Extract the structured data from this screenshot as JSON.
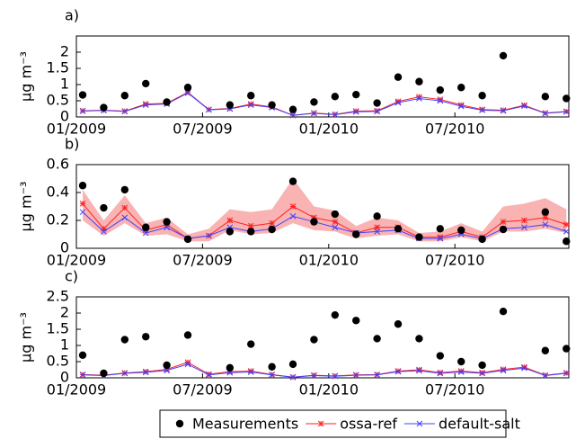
{
  "chart_data": [
    {
      "type": "line",
      "title": "a)",
      "ylabel": "µg m⁻³",
      "x": [
        "01/2009",
        "02/2009",
        "03/2009",
        "04/2009",
        "05/2009",
        "06/2009",
        "07/2009",
        "08/2009",
        "09/2009",
        "10/2009",
        "11/2009",
        "12/2009",
        "01/2010",
        "02/2010",
        "03/2010",
        "04/2010",
        "05/2010",
        "06/2010",
        "07/2010",
        "08/2010",
        "09/2010",
        "10/2010",
        "11/2010",
        "12/2010"
      ],
      "xticks": [
        "01/2009",
        "07/2009",
        "01/2010",
        "07/2010"
      ],
      "ylim": [
        0,
        2.5
      ],
      "yticks": [
        0,
        0.5,
        1,
        1.5,
        2
      ],
      "series": [
        {
          "color": "#000000",
          "marker": "o",
          "line": false,
          "values": [
            0.68,
            0.29,
            0.66,
            1.03,
            0.46,
            0.91,
            null,
            0.37,
            0.66,
            0.37,
            0.23,
            0.46,
            0.63,
            0.69,
            0.43,
            1.23,
            1.09,
            0.83,
            0.91,
            0.66,
            1.89,
            null,
            0.63,
            0.57
          ]
        },
        {
          "color": "#ff2020",
          "marker": "*",
          "line": true,
          "values": [
            0.19,
            0.21,
            0.18,
            0.4,
            0.42,
            0.76,
            0.23,
            0.26,
            0.4,
            0.31,
            0.05,
            0.12,
            0.08,
            0.18,
            0.19,
            0.48,
            0.62,
            0.54,
            0.37,
            0.23,
            0.21,
            0.36,
            0.12,
            0.17
          ]
        },
        {
          "color": "#4040ff",
          "marker": "x",
          "line": true,
          "values": [
            0.18,
            0.2,
            0.17,
            0.37,
            0.4,
            0.74,
            0.22,
            0.25,
            0.37,
            0.29,
            0.05,
            0.11,
            0.07,
            0.16,
            0.17,
            0.44,
            0.57,
            0.5,
            0.33,
            0.21,
            0.19,
            0.34,
            0.11,
            0.16
          ]
        }
      ]
    },
    {
      "type": "line",
      "title": "b)",
      "ylabel": "µg m⁻³",
      "x": [
        "01/2009",
        "02/2009",
        "03/2009",
        "04/2009",
        "05/2009",
        "06/2009",
        "07/2009",
        "08/2009",
        "09/2009",
        "10/2009",
        "11/2009",
        "12/2009",
        "01/2010",
        "02/2010",
        "03/2010",
        "04/2010",
        "05/2010",
        "06/2010",
        "07/2010",
        "08/2010",
        "09/2010",
        "10/2010",
        "11/2010",
        "12/2010"
      ],
      "xticks": [
        "01/2009",
        "07/2009",
        "01/2010",
        "07/2010"
      ],
      "ylim": [
        0,
        0.6
      ],
      "yticks": [
        0,
        0.2,
        0.4,
        0.6
      ],
      "series": [
        {
          "color": "#000000",
          "marker": "o",
          "line": false,
          "values": [
            0.45,
            0.29,
            0.42,
            0.15,
            0.19,
            0.065,
            null,
            0.12,
            0.12,
            0.135,
            0.48,
            0.19,
            0.245,
            0.1,
            0.23,
            0.14,
            0.08,
            0.14,
            0.13,
            0.065,
            0.135,
            null,
            0.26,
            0.05
          ]
        },
        {
          "color": "#ff2020",
          "marker": "*",
          "line": true,
          "band_color": "#f9b3b3",
          "values": [
            0.32,
            0.14,
            0.29,
            0.13,
            0.17,
            0.07,
            0.09,
            0.2,
            0.16,
            0.18,
            0.3,
            0.22,
            0.19,
            0.11,
            0.15,
            0.15,
            0.08,
            0.08,
            0.12,
            0.08,
            0.19,
            0.2,
            0.22,
            0.17
          ],
          "upper": [
            0.42,
            0.2,
            0.38,
            0.18,
            0.22,
            0.1,
            0.14,
            0.28,
            0.26,
            0.28,
            0.5,
            0.3,
            0.27,
            0.16,
            0.22,
            0.2,
            0.11,
            0.12,
            0.18,
            0.12,
            0.3,
            0.32,
            0.36,
            0.28
          ],
          "lower": [
            0.2,
            0.09,
            0.18,
            0.09,
            0.1,
            0.05,
            0.05,
            0.13,
            0.1,
            0.11,
            0.18,
            0.13,
            0.12,
            0.07,
            0.09,
            0.1,
            0.05,
            0.05,
            0.08,
            0.05,
            0.12,
            0.12,
            0.14,
            0.11
          ]
        },
        {
          "color": "#4040ff",
          "marker": "x",
          "line": true,
          "values": [
            0.26,
            0.12,
            0.22,
            0.11,
            0.15,
            0.07,
            0.09,
            0.15,
            0.12,
            0.14,
            0.23,
            0.19,
            0.15,
            0.11,
            0.12,
            0.13,
            0.07,
            0.07,
            0.1,
            0.07,
            0.14,
            0.15,
            0.17,
            0.12
          ]
        }
      ]
    },
    {
      "type": "line",
      "title": "c)",
      "ylabel": "µg m⁻³",
      "x": [
        "01/2009",
        "02/2009",
        "03/2009",
        "04/2009",
        "05/2009",
        "06/2009",
        "07/2009",
        "08/2009",
        "09/2009",
        "10/2009",
        "11/2009",
        "12/2009",
        "01/2010",
        "02/2010",
        "03/2010",
        "04/2010",
        "05/2010",
        "06/2010",
        "07/2010",
        "08/2010",
        "09/2010",
        "10/2010",
        "11/2010",
        "12/2010"
      ],
      "xticks": [
        "01/2009",
        "07/2009",
        "01/2010",
        "07/2010"
      ],
      "ylim": [
        0,
        2.5
      ],
      "yticks": [
        0,
        0.5,
        1,
        1.5,
        2,
        2.5
      ],
      "series": [
        {
          "name": "Measurements",
          "color": "#000000",
          "marker": "o",
          "line": false,
          "values": [
            0.7,
            0.14,
            1.18,
            1.27,
            0.39,
            1.32,
            null,
            0.31,
            1.04,
            0.34,
            0.42,
            1.18,
            1.94,
            1.77,
            1.21,
            1.66,
            1.21,
            0.68,
            0.5,
            0.39,
            2.05,
            null,
            0.84,
            0.9
          ]
        },
        {
          "name": "ossa-ref",
          "color": "#ff2020",
          "marker": "*",
          "line": true,
          "values": [
            0.1,
            0.08,
            0.15,
            0.19,
            0.26,
            0.48,
            0.11,
            0.19,
            0.21,
            0.1,
            0.02,
            0.08,
            0.06,
            0.09,
            0.1,
            0.21,
            0.25,
            0.16,
            0.21,
            0.16,
            0.26,
            0.33,
            0.08,
            0.15
          ]
        },
        {
          "name": "default-salt",
          "color": "#4040ff",
          "marker": "x",
          "line": true,
          "values": [
            0.09,
            0.07,
            0.14,
            0.17,
            0.23,
            0.42,
            0.09,
            0.16,
            0.18,
            0.09,
            0.02,
            0.07,
            0.05,
            0.08,
            0.09,
            0.19,
            0.22,
            0.14,
            0.18,
            0.14,
            0.23,
            0.3,
            0.07,
            0.14
          ]
        }
      ]
    }
  ]
}
